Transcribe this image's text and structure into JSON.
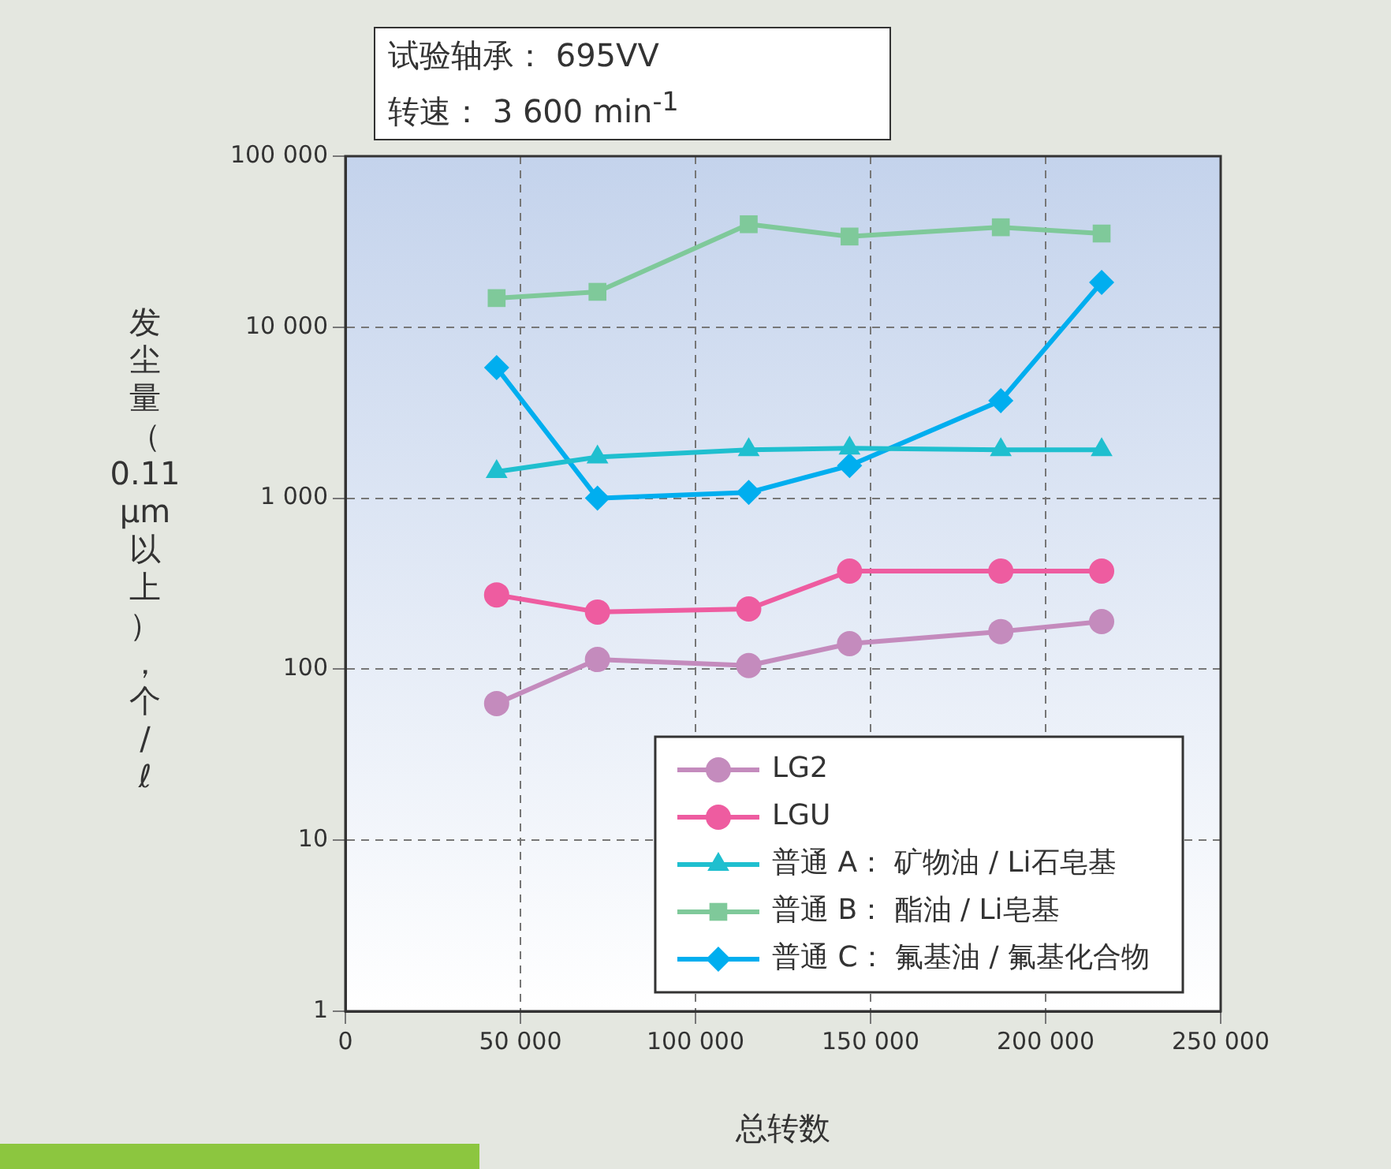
{
  "chart_data": {
    "type": "line",
    "xlabel": "总转数",
    "ylabel": "发尘量（0.11 μm以上），个/ℓ",
    "annotations": [
      "试验轴承： 695VV",
      "转速： 3 600 min$^{-1}$"
    ],
    "x": [
      43200,
      72000,
      115200,
      144000,
      187200,
      216000
    ],
    "series": [
      {
        "name": "LG2",
        "color": "#c48bbd",
        "marker": "circle",
        "values": [
          63,
          114,
          105,
          141,
          166,
          190
        ]
      },
      {
        "name": "LGU",
        "color": "#ee5ca0",
        "marker": "circle",
        "values": [
          272,
          216,
          225,
          375,
          375,
          375
        ]
      },
      {
        "name": "普通 A： 矿物油 / Li石皂基",
        "color": "#1fbfcf",
        "marker": "triangle",
        "values": [
          1430,
          1740,
          1920,
          1960,
          1920,
          1920
        ]
      },
      {
        "name": "普通 B： 酯油 / Li皂基",
        "color": "#7fc99a",
        "marker": "square",
        "values": [
          14800,
          16100,
          40000,
          33900,
          38400,
          35300
        ]
      },
      {
        "name": "普通 C： 氟基油 / 氟基化合物",
        "color": "#00aeef",
        "marker": "diamond",
        "values": [
          5800,
          1000,
          1080,
          1550,
          3720,
          18300
        ]
      }
    ],
    "log": "y",
    "xlim": [
      0,
      250000
    ],
    "xticks": [
      0,
      {
        "value": 50000,
        "label": "50 000"
      },
      {
        "value": 100000,
        "label": "100 000"
      },
      {
        "value": 150000,
        "label": "150 000"
      },
      {
        "value": 200000,
        "label": "200 000"
      },
      {
        "value": 250000,
        "label": "250 000"
      }
    ],
    "ylim": [
      1,
      100000
    ],
    "yticks": [
      1,
      10,
      100,
      {
        "value": 1000,
        "label": "1 000"
      },
      {
        "value": 10000,
        "label": "10 000"
      },
      {
        "value": 100000,
        "label": "100 000"
      }
    ],
    "grid": true,
    "legend": "bottom right",
    "line_style": "solid"
  }
}
